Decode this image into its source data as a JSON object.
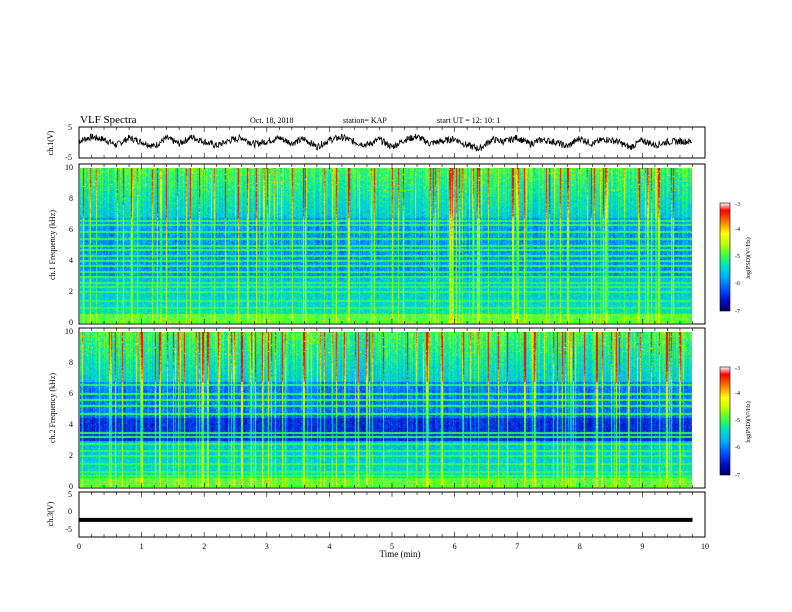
{
  "header": {
    "title": "VLF Spectra",
    "date": "Oct. 18, 2018",
    "station": "station= KAP",
    "start": "start  UT =   12: 10: 1"
  },
  "colors": {
    "spectrum_scale": [
      "#000060",
      "#0010c0",
      "#0050ff",
      "#00b0ff",
      "#00e0c0",
      "#40ff40",
      "#c0ff00",
      "#ffff00",
      "#ff8000",
      "#ff0000",
      "#ffffff"
    ]
  },
  "chart_data": [
    {
      "type": "line",
      "name": "ch1-waveform",
      "ylabel": "ch.1(V)",
      "ylim": [
        -5,
        5
      ],
      "yticks": [
        "5",
        "-5"
      ],
      "xlim": [
        0,
        10
      ],
      "x": [
        0.0,
        0.2,
        0.4,
        0.6,
        0.8,
        1.0,
        1.2,
        1.4,
        1.6,
        1.8,
        2.0,
        2.2,
        2.4,
        2.6,
        2.8,
        3.0,
        3.2,
        3.4,
        3.6,
        3.8,
        4.0,
        4.2,
        4.4,
        4.6,
        4.8,
        5.0,
        5.2,
        5.4,
        5.6,
        5.8,
        6.0,
        6.2,
        6.4,
        6.6,
        6.8,
        7.0,
        7.2,
        7.4,
        7.6,
        7.8,
        8.0,
        8.2,
        8.4,
        8.6,
        8.8,
        9.0,
        9.2,
        9.4,
        9.6,
        9.8
      ],
      "y": [
        0.5,
        1.8,
        1.0,
        -0.8,
        1.5,
        0.2,
        -1.2,
        1.4,
        -0.4,
        1.8,
        0.3,
        -1.0,
        0.6,
        1.6,
        -0.6,
        0.4,
        1.5,
        -0.2,
        1.1,
        -1.4,
        0.8,
        1.7,
        0.2,
        -0.8,
        1.0,
        -1.5,
        0.9,
        1.9,
        -0.3,
        0.4,
        1.2,
        -0.9,
        -2.0,
        1.0,
        0.3,
        1.6,
        -0.5,
        0.9,
        0.2,
        -1.3,
        1.4,
        -0.4,
        1.1,
        0.3,
        -1.6,
        0.7,
        -0.8,
        0.2,
        0.4,
        0.3
      ]
    },
    {
      "type": "heatmap",
      "name": "ch1-spectrogram",
      "ylabel": "ch.1 Frequency (kHz)",
      "ylim": [
        0,
        10
      ],
      "yticks": [
        "0",
        "2",
        "4",
        "6",
        "8",
        "10"
      ],
      "xlim": [
        0,
        9.8
      ],
      "color_range": [
        -7,
        -3
      ],
      "colorbar_label": "log(PSD)(V²/Hz)",
      "colorbar_ticks": [
        "-3",
        "-4",
        "-5",
        "-6",
        "-7"
      ],
      "lines_khz": [
        0.2,
        0.5,
        1.0,
        1.4,
        2.0,
        2.3,
        2.6,
        3.0,
        3.3,
        3.7,
        4.0,
        4.3,
        4.7,
        5.0,
        5.4,
        5.9,
        6.3,
        6.6
      ]
    },
    {
      "type": "heatmap",
      "name": "ch2-spectrogram",
      "ylabel": "ch.2 Frequency (kHz)",
      "ylim": [
        0,
        10
      ],
      "yticks": [
        "0",
        "2",
        "4",
        "6",
        "8",
        "10"
      ],
      "xlim": [
        0,
        9.8
      ],
      "color_range": [
        -7,
        -3
      ],
      "colorbar_label": "log(PSD)(V²/Hz)",
      "colorbar_ticks": [
        "-3",
        "-4",
        "-5",
        "-6",
        "-7"
      ],
      "lines_khz": [
        0.3,
        0.7,
        1.0,
        1.5,
        2.0,
        2.3,
        2.8,
        3.2,
        3.5,
        4.7,
        5.2,
        5.6,
        6.0,
        6.6
      ]
    },
    {
      "type": "line",
      "name": "ch3-waveform",
      "ylabel": "ch.3(V)",
      "ylim": [
        -5,
        5
      ],
      "yticks": [
        "5",
        "0",
        "-5"
      ],
      "xlim": [
        0,
        10
      ],
      "x": [
        0.0,
        9.8
      ],
      "y": [
        -1.2,
        -1.2
      ],
      "xlabel": "Time  (min)",
      "xticks": [
        "0",
        "1",
        "2",
        "3",
        "4",
        "5",
        "6",
        "7",
        "8",
        "9",
        "10"
      ]
    }
  ]
}
